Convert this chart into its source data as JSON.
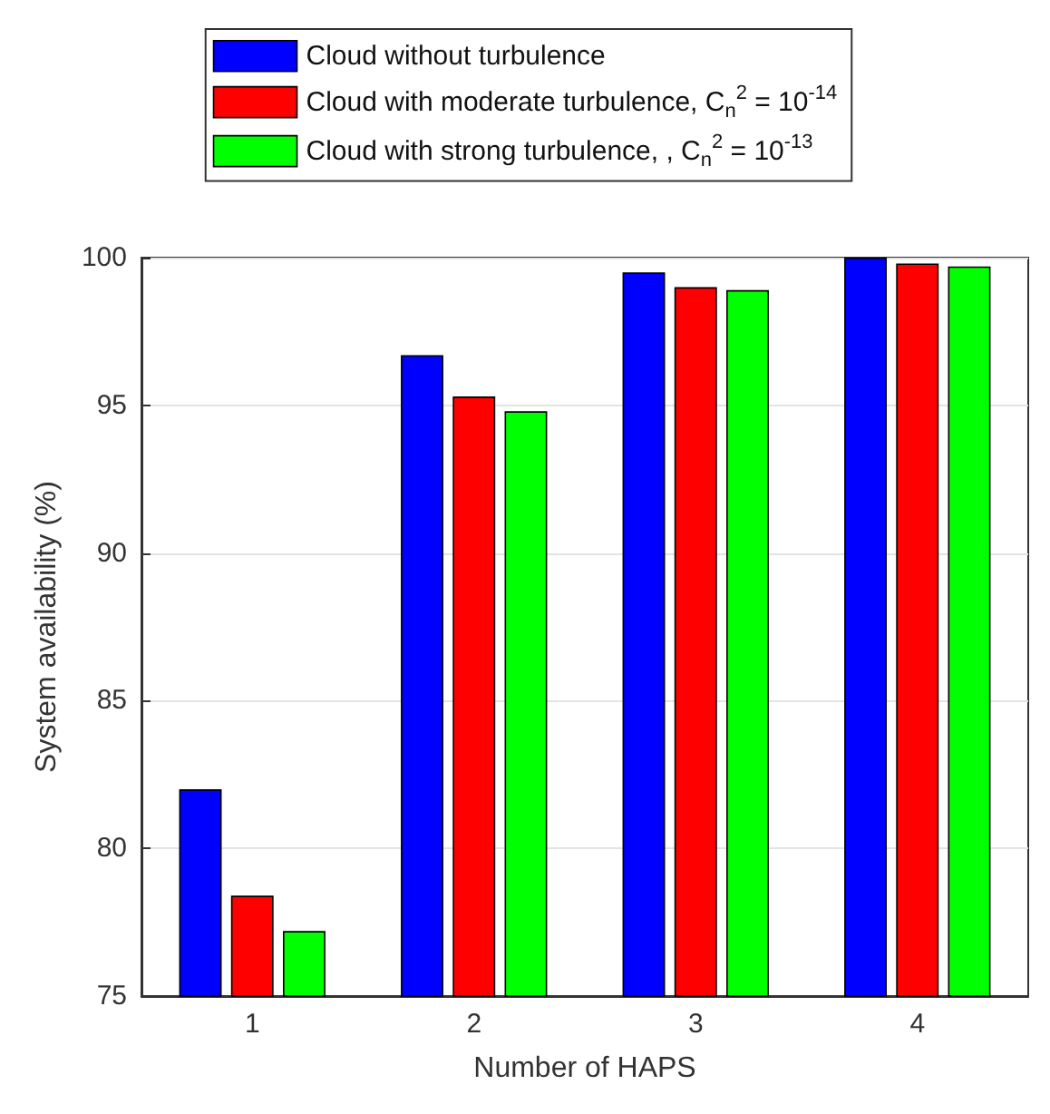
{
  "chart_data": {
    "type": "bar",
    "xlabel": "Number of HAPS",
    "ylabel": "System availability (%)",
    "categories": [
      "1",
      "2",
      "3",
      "4"
    ],
    "series": [
      {
        "name": "Cloud without turbulence",
        "color": "#0000ff",
        "values": [
          82.0,
          96.7,
          99.5,
          100.0
        ]
      },
      {
        "name": "Cloud with moderate turbulence, C$_{n}$$^{2}$ = 10$^{-14}$",
        "color": "#ff0000",
        "values": [
          78.4,
          95.3,
          99.0,
          99.8
        ]
      },
      {
        "name": "Cloud with strong turbulence, , C$_{n}$$^{2}$ = 10$^{-13}$",
        "color": "#00ff00",
        "values": [
          77.2,
          94.8,
          98.9,
          99.7
        ]
      }
    ],
    "ylim": [
      75,
      100
    ],
    "yticks": [
      75,
      80,
      85,
      90,
      95,
      100
    ],
    "grid": "y",
    "legend": "top"
  }
}
